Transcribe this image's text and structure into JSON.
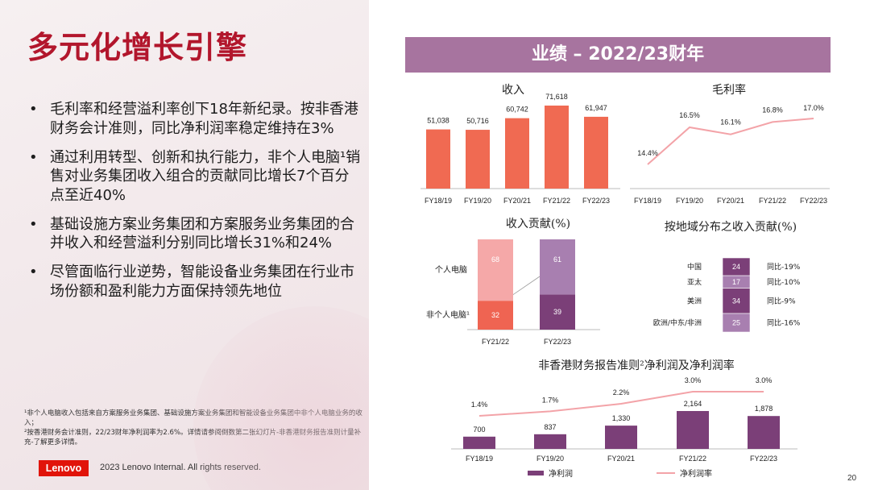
{
  "title": "多元化增长引擎",
  "bullets": [
    "毛利率和经营溢利率创下18年新纪录。按非香港财务会计准则，同比净利润率稳定维持在3%",
    "通过利用转型、创新和执行能力，非个人电脑¹销售对业务集团收入组合的贡献同比增长7个百分点至近40%",
    "基础设施方案业务集团和方案服务业务集团的合并收入和经营溢利分别同比增长31%和24%",
    "尽管面临行业逆势，智能设备业务集团在行业市场份额和盈利能力方面保持领先地位"
  ],
  "bullet_symbol": "•",
  "footnotes": [
    "¹非个人电脑收入包括来自方案服务业务集团、基础设施方案业务集团和智能设备业务集团中非个人电脑业务的收入；",
    "²按香港财务会计准则，22/23财年净利润率为2.6%。详情请参阅倒数第二张幻灯片-非香港财务报告准则计量补充-了解更多详情。"
  ],
  "logo_text": "Lenovo",
  "copyright": "2023 Lenovo Internal. All rights reserved.",
  "page_number": "20",
  "banner": "业绩 – 2022/23财年",
  "colors": {
    "title": "#b2162c",
    "banner": "#a7749f",
    "revenue_bar": "#f06a52",
    "margin_line": "#f3a3a8",
    "pc_light": "#f5a8a8",
    "pc_dark": "#ef6452",
    "purple_light": "#a87fb0",
    "purple_dark": "#7b3f78"
  },
  "chart_data": [
    {
      "type": "bar",
      "title": "收入",
      "categories": [
        "FY18/19",
        "FY19/20",
        "FY20/21",
        "FY21/22",
        "FY22/23"
      ],
      "values": [
        51038,
        50716,
        60742,
        71618,
        61947
      ],
      "labels": [
        "51,038",
        "50,716",
        "60,742",
        "71,618",
        "61,947"
      ],
      "ylim": [
        0,
        75000
      ]
    },
    {
      "type": "line",
      "title": "毛利率",
      "categories": [
        "FY18/19",
        "FY19/20",
        "FY20/21",
        "FY21/22",
        "FY22/23"
      ],
      "values": [
        14.4,
        16.5,
        16.1,
        16.8,
        17.0
      ],
      "labels": [
        "14.4%",
        "16.5%",
        "16.1%",
        "16.8%",
        "17.0%"
      ],
      "ylim": [
        14.0,
        17.2
      ]
    },
    {
      "type": "bar",
      "stacked": true,
      "title": "收入贡献(%)",
      "categories": [
        "FY21/22",
        "FY22/23"
      ],
      "series": [
        {
          "name": "非个人电脑¹",
          "values": [
            32,
            39
          ]
        },
        {
          "name": "个人电脑",
          "values": [
            68,
            61
          ]
        }
      ]
    },
    {
      "type": "bar",
      "stacked": true,
      "title": "按地域分布之收入贡献(%)",
      "categories": [
        "中国",
        "亚太",
        "美洲",
        "欧洲/中东/非洲"
      ],
      "values": [
        24,
        17,
        34,
        25
      ],
      "annotations": [
        "同比-19%",
        "同比-10%",
        "同比-9%",
        "同比-16%"
      ]
    },
    {
      "type": "bar",
      "title": "非香港财务报告准则²净利润及净利润率",
      "categories": [
        "FY18/19",
        "FY19/20",
        "FY20/21",
        "FY21/22",
        "FY22/23"
      ],
      "series": [
        {
          "name": "净利润",
          "type": "bar",
          "values": [
            700,
            837,
            1330,
            2164,
            1878
          ],
          "labels": [
            "700",
            "837",
            "1,330",
            "2,164",
            "1,878"
          ]
        },
        {
          "name": "净利润率",
          "type": "line",
          "values": [
            1.4,
            1.7,
            2.2,
            3.0,
            3.0
          ],
          "labels": [
            "1.4%",
            "1.7%",
            "2.2%",
            "3.0%",
            "3.0%"
          ]
        }
      ],
      "legend": [
        "净利润",
        "净利润率"
      ],
      "ylim": [
        0,
        2400
      ]
    }
  ]
}
